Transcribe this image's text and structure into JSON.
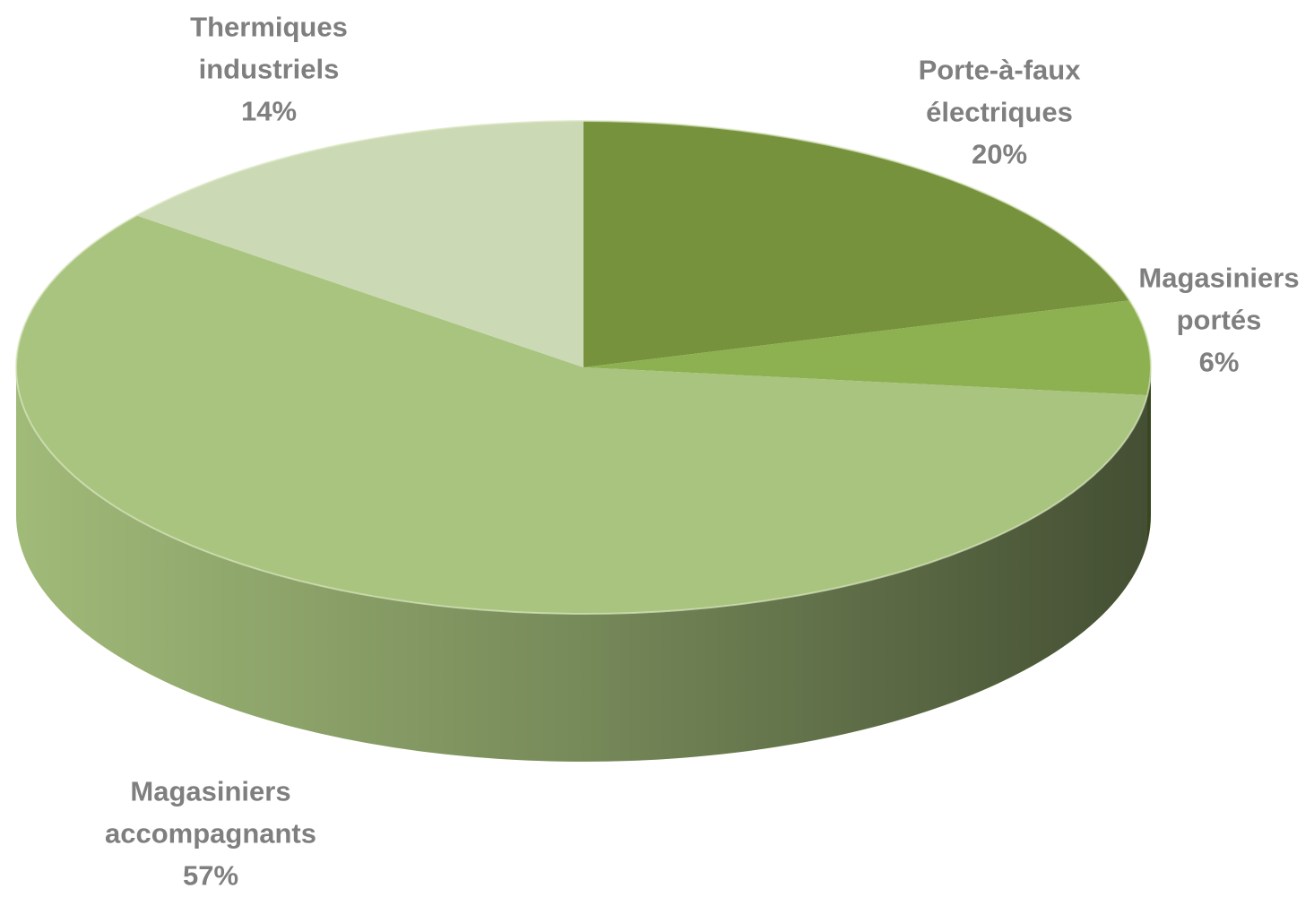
{
  "chart_data": {
    "type": "pie",
    "categories": [
      "Porte-à-faux électriques",
      "Magasiniers portés",
      "Magasiniers accompagnants",
      "Thermiques industriels"
    ],
    "values": [
      20,
      6,
      57,
      14
    ],
    "value_labels": [
      "20%",
      "6%",
      "57%",
      "14%"
    ],
    "colors": [
      "#77923c",
      "#8db050",
      "#a9c47f",
      "#ccd9b5"
    ]
  }
}
